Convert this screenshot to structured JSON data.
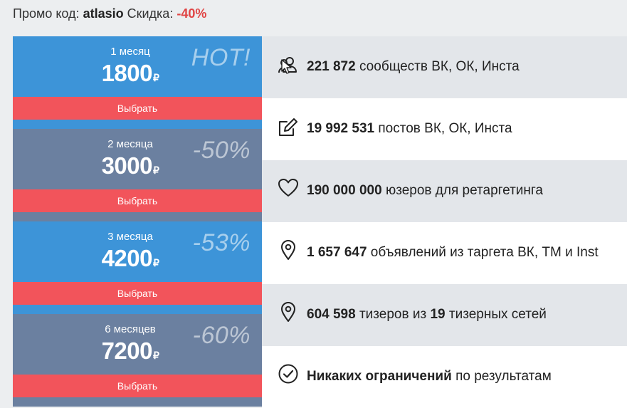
{
  "promo": {
    "label": "Промо код:",
    "code": "atlasio",
    "discount_label": "Скидка:",
    "discount_value": "-40%"
  },
  "plans": [
    {
      "period": "1 месяц",
      "price": "1800",
      "currency": "₽",
      "badge": "HOT!",
      "button": "Выбрать"
    },
    {
      "period": "2 месяца",
      "price": "3000",
      "currency": "₽",
      "badge": "-50%",
      "button": "Выбрать"
    },
    {
      "period": "3 месяца",
      "price": "4200",
      "currency": "₽",
      "badge": "-53%",
      "button": "Выбрать"
    },
    {
      "period": "6 месяцев",
      "price": "7200",
      "currency": "₽",
      "badge": "-60%",
      "button": "Выбрать"
    }
  ],
  "features": [
    {
      "icon": "users-icon",
      "bold": "221 872",
      "text": " сообществ ВК, ОК, Инста"
    },
    {
      "icon": "edit-icon",
      "bold": "19 992 531",
      "text": " постов ВК, ОК, Инста"
    },
    {
      "icon": "heart-icon",
      "bold": "190 000 000",
      "text": " юзеров для ретаргетинга"
    },
    {
      "icon": "map-pin-icon",
      "bold": "1 657 647",
      "text": " объявлений из таргета ВК, ТМ и Inst"
    },
    {
      "icon": "map-pin-icon",
      "bold": "604 598",
      "text": " тизеров из ",
      "bold2": "19",
      "text2": " тизерных сетей"
    },
    {
      "icon": "check-circle-icon",
      "bold": "Никаких ограничений",
      "text": " по результатам"
    }
  ],
  "colors": {
    "blue": "#3d94d8",
    "gray": "#6b80a0",
    "button_red": "#f2545b",
    "discount_red": "#e04545"
  }
}
